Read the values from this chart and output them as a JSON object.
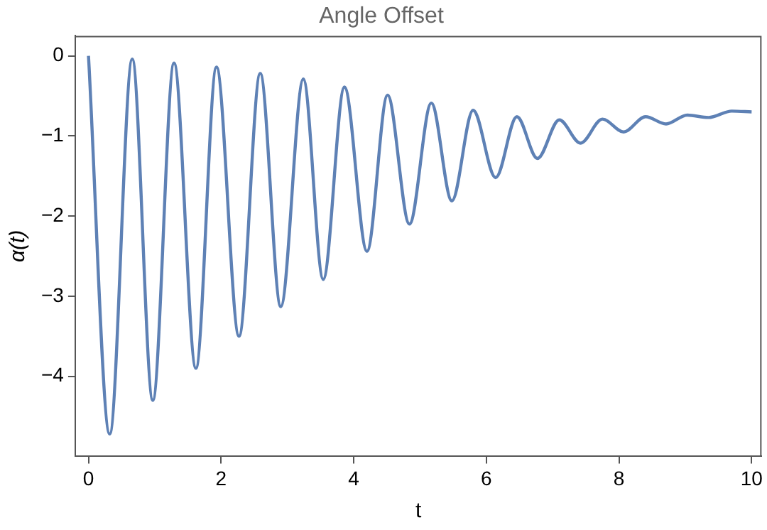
{
  "chart_data": {
    "type": "line",
    "title": "Angle Offset",
    "xlabel": "t",
    "ylabel": "α(t)",
    "x": [
      0,
      0.32,
      0.66,
      0.97,
      1.29,
      1.62,
      1.93,
      2.27,
      2.59,
      2.9,
      3.24,
      3.54,
      3.86,
      4.2,
      4.51,
      4.84,
      5.17,
      5.48,
      5.8,
      6.14,
      6.46,
      6.77,
      7.1,
      7.42,
      7.75,
      8.07,
      8.4,
      8.71,
      9.03,
      9.35,
      9.7,
      10
    ],
    "series": [
      {
        "color": "#5e81b5",
        "values": [
          0,
          -4.72,
          -0.04,
          -4.3,
          -0.09,
          -3.9,
          -0.14,
          -3.5,
          -0.22,
          -3.13,
          -0.29,
          -2.79,
          -0.39,
          -2.44,
          -0.49,
          -2.1,
          -0.59,
          -1.81,
          -0.68,
          -1.52,
          -0.76,
          -1.28,
          -0.8,
          -1.09,
          -0.79,
          -0.95,
          -0.76,
          -0.85,
          -0.74,
          -0.77,
          -0.69,
          -0.7
        ]
      }
    ],
    "xlim": [
      -0.2,
      10.15
    ],
    "ylim": [
      -5,
      0.25
    ],
    "xticks": [
      0,
      2,
      4,
      6,
      8,
      10
    ],
    "yticks": [
      -4,
      -3,
      -2,
      -1,
      0
    ],
    "grid": false,
    "legend": false,
    "marker": "none",
    "line_style": "solid"
  }
}
